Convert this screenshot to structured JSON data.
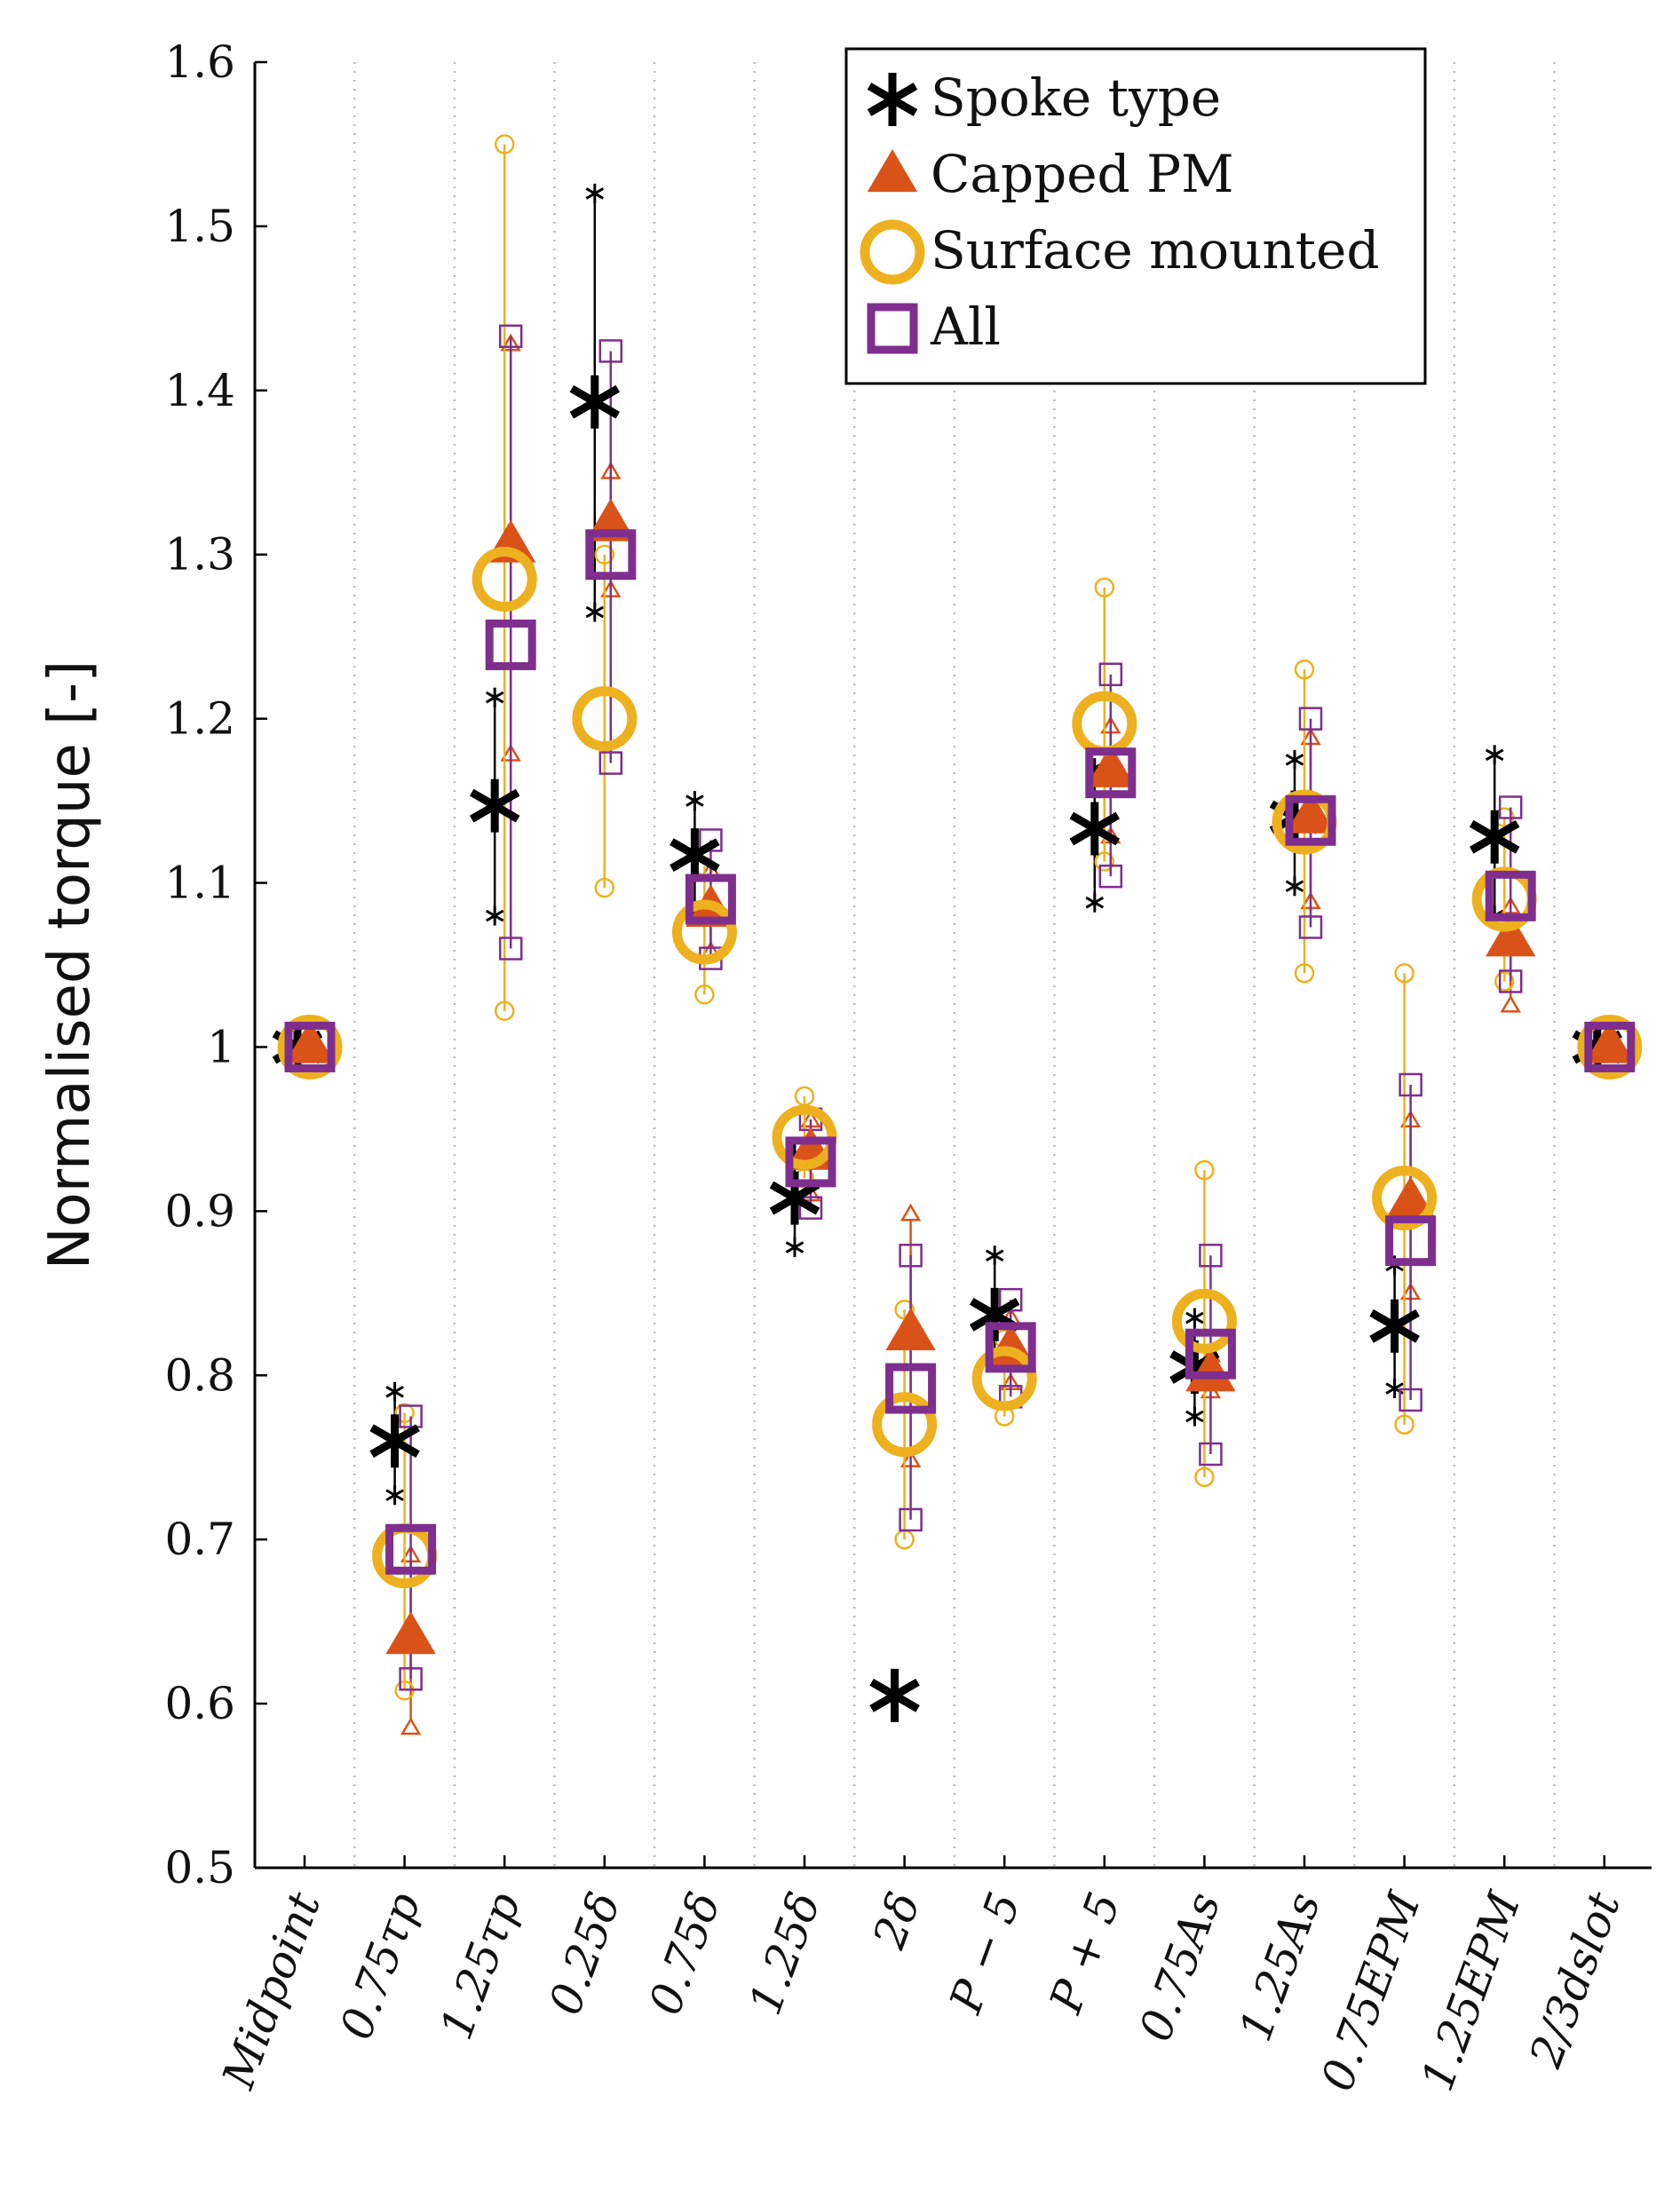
{
  "chart_data": {
    "type": "scatter",
    "title": "",
    "xlabel": "",
    "ylabel": "Normalised torque [-]",
    "ylim": [
      0.5,
      1.6
    ],
    "yticks": [
      0.5,
      0.6,
      0.7,
      0.8,
      0.9,
      1,
      1.1,
      1.2,
      1.3,
      1.4,
      1.5,
      1.6
    ],
    "ytick_labels": [
      "0.5",
      "0.6",
      "0.7",
      "0.8",
      "0.9",
      "1",
      "1.1",
      "1.2",
      "1.3",
      "1.4",
      "1.5",
      "1.6"
    ],
    "categories": [
      "Midpoint",
      "0.75τp",
      "1.25τp",
      "0.25δ",
      "0.75δ",
      "1.25δ",
      "2δ",
      "P − 5",
      "P + 5",
      "0.75As",
      "1.25As",
      "0.75EPM",
      "1.25EPM",
      "2/3dslot"
    ],
    "grid": "vertical dotted separators",
    "legend_position": "top-right",
    "series": [
      {
        "name": "Spoke type",
        "color": "#000000",
        "marker": "asterisk",
        "mean": [
          1.0,
          0.76,
          1.147,
          1.393,
          1.117,
          0.908,
          0.605,
          0.837,
          1.133,
          0.805,
          1.14,
          0.83,
          1.128,
          1.0
        ],
        "min": [
          1.0,
          0.727,
          1.08,
          1.265,
          1.082,
          0.878,
          null,
          0.81,
          1.088,
          0.775,
          1.098,
          0.792,
          1.08,
          1.0
        ],
        "max": [
          1.0,
          0.79,
          1.213,
          1.52,
          1.15,
          0.935,
          null,
          0.873,
          1.17,
          0.835,
          1.175,
          0.867,
          1.178,
          1.0
        ]
      },
      {
        "name": "Capped PM",
        "color": "#d95319",
        "marker": "triangle",
        "mean": [
          1.0,
          0.64,
          1.305,
          1.318,
          1.083,
          0.935,
          0.825,
          0.815,
          1.168,
          0.8,
          1.14,
          0.905,
          1.065,
          1.0
        ],
        "min": [
          1.0,
          0.585,
          1.178,
          1.278,
          1.058,
          0.91,
          0.748,
          0.795,
          1.128,
          0.79,
          1.088,
          0.85,
          1.025,
          1.0
        ],
        "max": [
          1.0,
          0.69,
          1.428,
          1.35,
          1.107,
          0.955,
          0.898,
          0.835,
          1.195,
          0.812,
          1.188,
          0.955,
          1.085,
          1.0
        ]
      },
      {
        "name": "Surface mounted",
        "color": "#edb120",
        "marker": "circle",
        "mean": [
          1.0,
          0.69,
          1.285,
          1.2,
          1.07,
          0.945,
          0.77,
          0.798,
          1.197,
          0.833,
          1.137,
          0.908,
          1.09,
          1.0
        ],
        "min": [
          1.0,
          0.608,
          1.022,
          1.097,
          1.032,
          0.92,
          0.7,
          0.775,
          1.113,
          0.738,
          1.045,
          0.77,
          1.04,
          1.0
        ],
        "max": [
          1.0,
          0.777,
          1.55,
          1.3,
          1.11,
          0.97,
          0.84,
          0.822,
          1.28,
          0.925,
          1.23,
          1.045,
          1.14,
          1.0
        ]
      },
      {
        "name": "All",
        "color": "#7e2f8e",
        "marker": "square",
        "mean": [
          1.0,
          0.694,
          1.245,
          1.3,
          1.09,
          0.93,
          0.792,
          0.817,
          1.167,
          0.813,
          1.138,
          0.882,
          1.092,
          1.0
        ],
        "min": [
          1.0,
          0.615,
          1.06,
          1.173,
          1.054,
          0.902,
          0.712,
          0.787,
          1.104,
          0.752,
          1.073,
          0.785,
          1.04,
          1.0
        ],
        "max": [
          1.0,
          0.775,
          1.433,
          1.424,
          1.126,
          0.956,
          0.873,
          0.846,
          1.227,
          0.873,
          1.2,
          0.977,
          1.146,
          1.0
        ]
      }
    ]
  }
}
